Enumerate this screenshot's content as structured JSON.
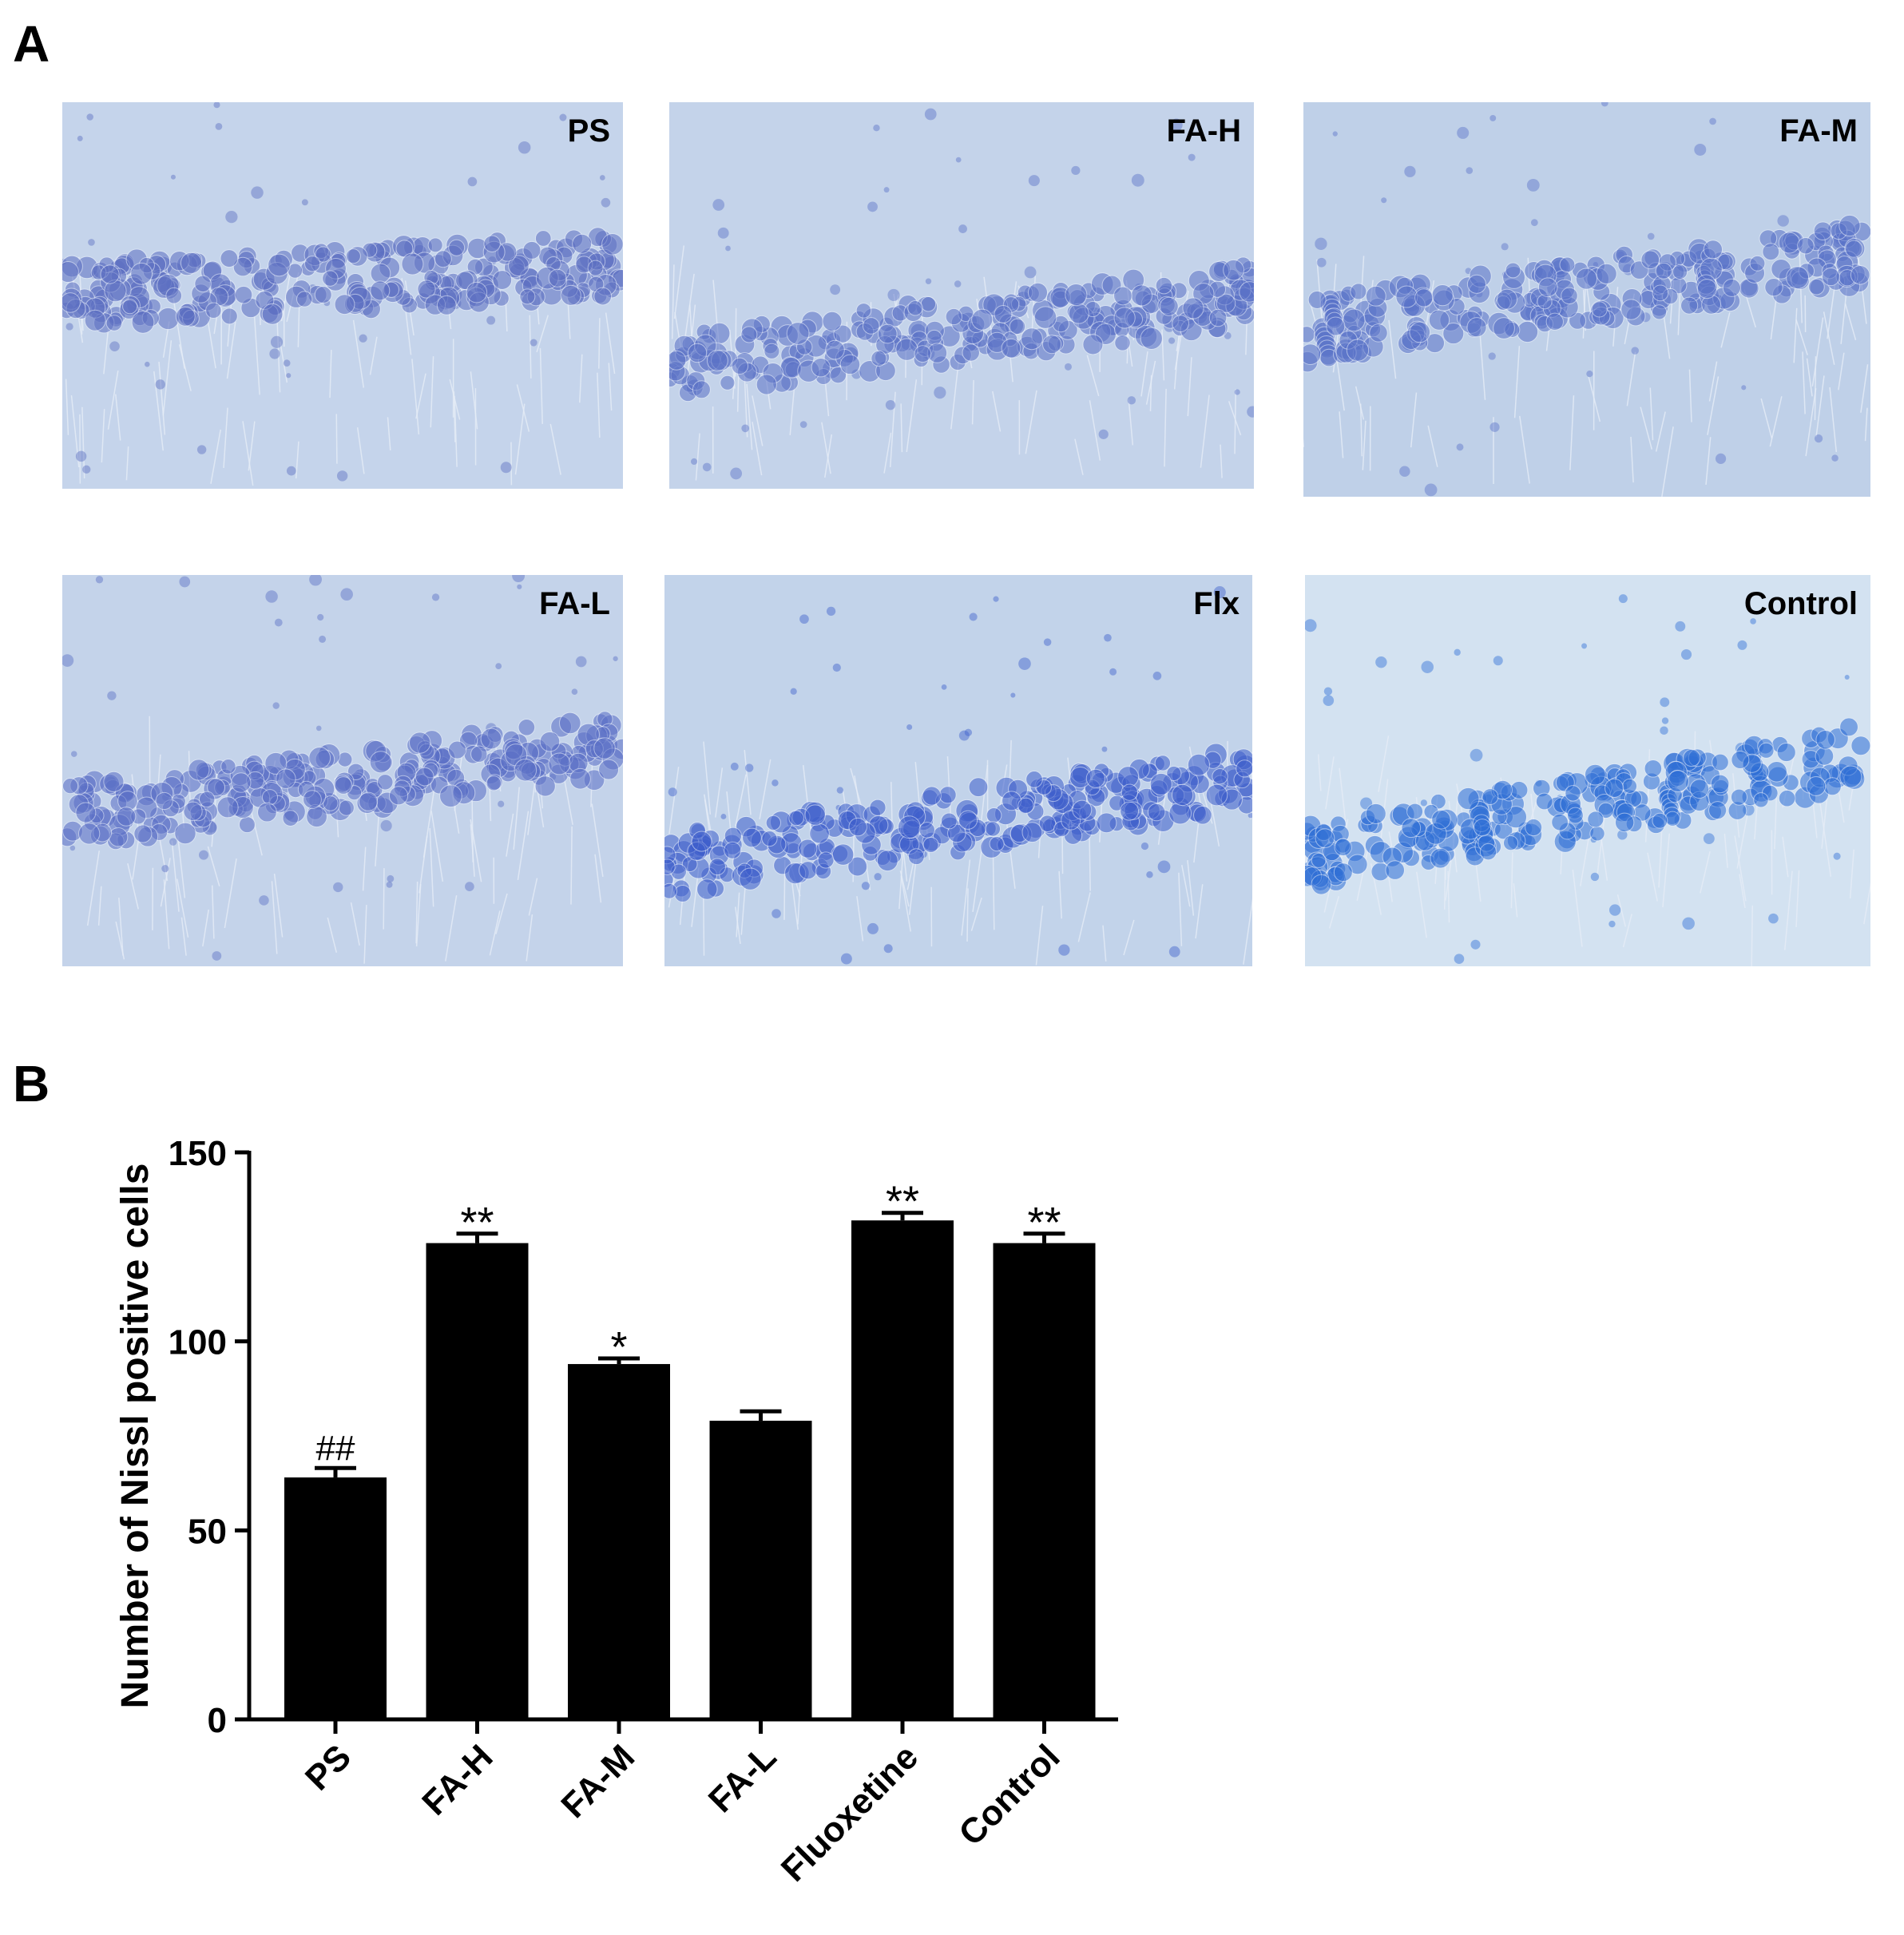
{
  "panels": {
    "a_label": "A",
    "b_label": "B"
  },
  "micrographs": [
    {
      "label": "PS",
      "tint": "#c5d4eb",
      "cell_color": "#5c6fc2"
    },
    {
      "label": "FA-H",
      "tint": "#c4d3ea",
      "cell_color": "#5b72c7"
    },
    {
      "label": "FA-M",
      "tint": "#bfd0e8",
      "cell_color": "#5a73c9"
    },
    {
      "label": "FA-L",
      "tint": "#c4d3ea",
      "cell_color": "#5a6fc6"
    },
    {
      "label": "Flx",
      "tint": "#c2d3ea",
      "cell_color": "#3f5fcc"
    },
    {
      "label": "Control",
      "tint": "#d3e2f1",
      "cell_color": "#2f6fd6"
    }
  ],
  "chart_data": {
    "type": "bar",
    "categories": [
      "PS",
      "FA-H",
      "FA-M",
      "FA-L",
      "Fluoxetine",
      "Control"
    ],
    "values": [
      64,
      126,
      94,
      79,
      132,
      126
    ],
    "errors": [
      2.5,
      2.5,
      1.5,
      2.5,
      2.0,
      2.5
    ],
    "annotations": [
      "##",
      "**",
      "*",
      "",
      "**",
      "**"
    ],
    "ylabel": "Number of Nissl positive cells",
    "xlabel": "",
    "ylim": [
      0,
      150
    ],
    "yticks": [
      0,
      50,
      100,
      150
    ],
    "bar_color": "#000000",
    "grid": false
  }
}
